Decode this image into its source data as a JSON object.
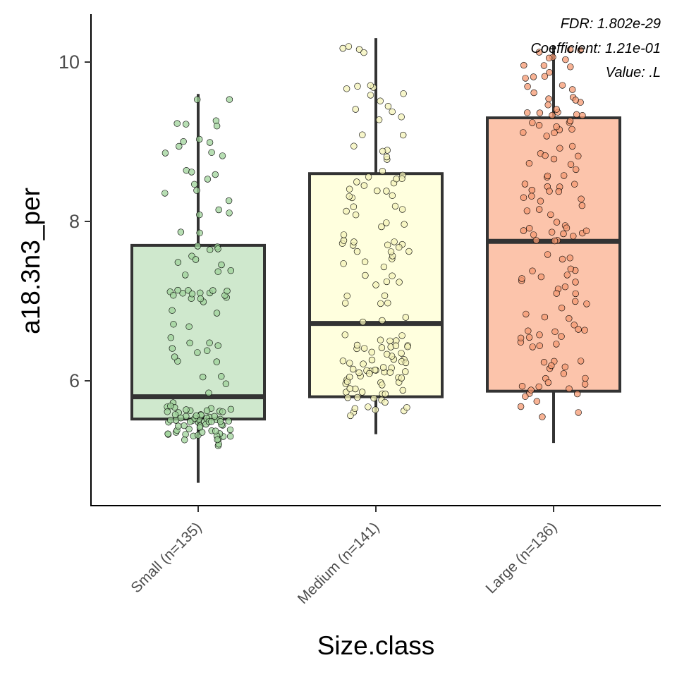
{
  "chart_data": {
    "type": "box",
    "xlabel": "Size.class",
    "ylabel": "a18.3n3_per",
    "ylim": [
      4.55,
      10.6
    ],
    "yticks": [
      6,
      8,
      10
    ],
    "annotations": [
      "FDR: 1.802e-29",
      "Coefficient: 1.21e-01",
      "Value: .L"
    ],
    "categories": [
      "Small (n=135)",
      "Medium (n=141)",
      "Large (n=136)"
    ],
    "boxes": [
      {
        "category": "Small (n=135)",
        "n": 135,
        "min": 4.72,
        "q1": 5.52,
        "median": 5.8,
        "q3": 7.7,
        "max": 9.6,
        "fill": "#cfe8cd",
        "point_color": "#9fd39a"
      },
      {
        "category": "Medium (n=141)",
        "n": 141,
        "min": 5.33,
        "q1": 5.8,
        "median": 6.72,
        "q3": 8.6,
        "max": 10.3,
        "fill": "#ffffde",
        "point_color": "#f4f3b8"
      },
      {
        "category": "Large (n=136)",
        "n": 136,
        "min": 5.22,
        "q1": 5.87,
        "median": 7.75,
        "q3": 9.3,
        "max": 10.2,
        "fill": "#fcc4ab",
        "point_color": "#f59a72"
      }
    ]
  }
}
